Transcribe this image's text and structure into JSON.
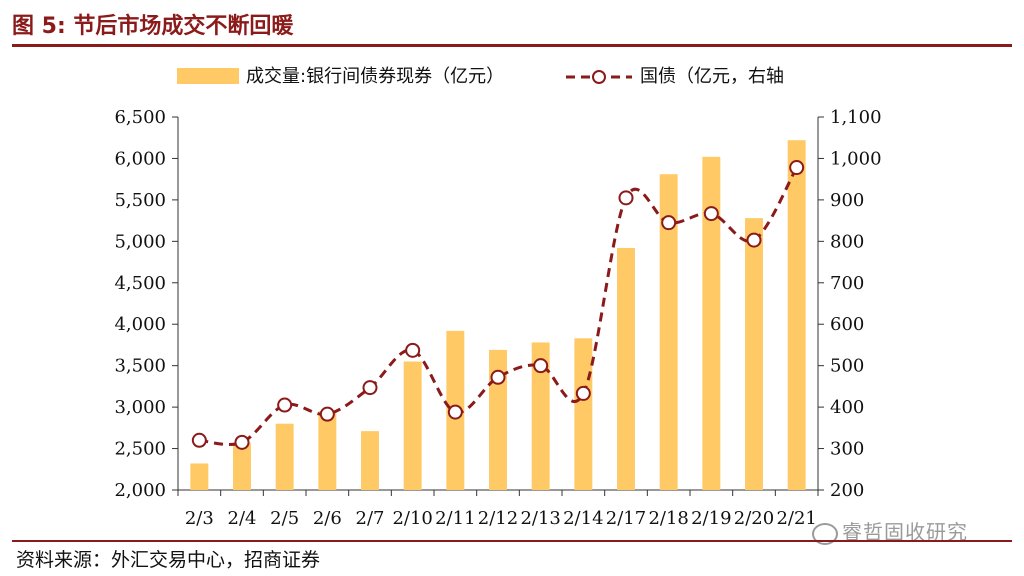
{
  "figure": {
    "title": "图 5:  节后市场成交不断回暖",
    "source": "资料来源：外汇交易中心，招商证券",
    "watermark": "睿哲固收研究",
    "watermark_icon": "wechat-icon"
  },
  "colors": {
    "bar": "#FFC966",
    "line": "#8B1A1A",
    "marker_fill": "#FFFFFF",
    "axis": "#333333"
  },
  "chart_data": {
    "type": "bar+line",
    "categories": [
      "2/3",
      "2/4",
      "2/5",
      "2/6",
      "2/7",
      "2/10",
      "2/11",
      "2/12",
      "2/13",
      "2/14",
      "2/17",
      "2/18",
      "2/19",
      "2/20",
      "2/21"
    ],
    "series": [
      {
        "name": "成交量:银行间债券现券（亿元）",
        "type": "bar",
        "axis": "left",
        "values": [
          2320,
          2570,
          2800,
          2950,
          2710,
          3550,
          3920,
          3690,
          3780,
          3830,
          4920,
          5810,
          6020,
          5280,
          6220
        ]
      },
      {
        "name": "国债（亿元，右轴",
        "type": "line",
        "style": "dashed",
        "marker": "circle",
        "axis": "right",
        "values": [
          320,
          315,
          405,
          383,
          447,
          537,
          388,
          472,
          500,
          433,
          905,
          845,
          867,
          803,
          978
        ]
      }
    ],
    "left_axis": {
      "range": [
        2000,
        6500
      ],
      "ticks": [
        "2,000",
        "2,500",
        "3,000",
        "3,500",
        "4,000",
        "4,500",
        "5,000",
        "5,500",
        "6,000",
        "6,500"
      ]
    },
    "right_axis": {
      "range": [
        200,
        1100
      ],
      "ticks": [
        "200",
        "300",
        "400",
        "500",
        "600",
        "700",
        "800",
        "900",
        "1,000",
        "1,100"
      ]
    },
    "legend_position": "top",
    "grid": false
  }
}
